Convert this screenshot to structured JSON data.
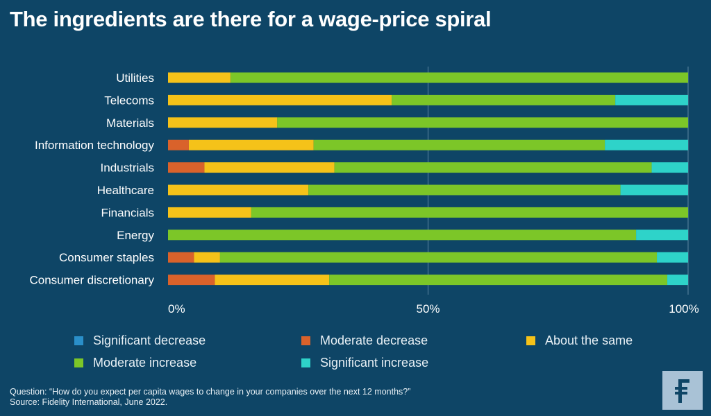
{
  "title": "The ingredients are there for a wage-price spiral",
  "chart_data": {
    "type": "bar",
    "orientation": "horizontal",
    "stacked": true,
    "title": "The ingredients are there for a wage-price spiral",
    "categories": [
      "Utilities",
      "Telecoms",
      "Materials",
      "Information technology",
      "Industrials",
      "Healthcare",
      "Financials",
      "Energy",
      "Consumer staples",
      "Consumer discretionary"
    ],
    "series": [
      {
        "name": "Significant decrease",
        "color": "#2a8fc9",
        "values": [
          0,
          0,
          0,
          0,
          0,
          0,
          0,
          0,
          0,
          0
        ]
      },
      {
        "name": "Moderate decrease",
        "color": "#d9622b",
        "values": [
          0,
          0,
          0,
          4,
          7,
          0,
          0,
          0,
          5,
          9
        ]
      },
      {
        "name": "About the same",
        "color": "#f5c219",
        "values": [
          12,
          43,
          21,
          24,
          25,
          27,
          16,
          0,
          5,
          22
        ]
      },
      {
        "name": "Moderate increase",
        "color": "#7cc628",
        "values": [
          88,
          43,
          79,
          56,
          61,
          60,
          84,
          90,
          84,
          65
        ]
      },
      {
        "name": "Significant increase",
        "color": "#2ed3c9",
        "values": [
          0,
          14,
          0,
          16,
          7,
          13,
          0,
          10,
          6,
          4
        ]
      }
    ],
    "x_ticks": [
      "0%",
      "50%",
      "100%"
    ],
    "xlim": [
      0,
      100
    ],
    "grid": "vertical at 50% and 100%",
    "legend_position": "bottom"
  },
  "footnote": {
    "question": "Question: “How do you expect per capita wages to change in your companies over the next 12 months?”",
    "source": "Source: Fidelity International, June 2022."
  },
  "logo": {
    "icon": "fidelity-f-logo-icon",
    "bg": "#a9c2d6"
  }
}
